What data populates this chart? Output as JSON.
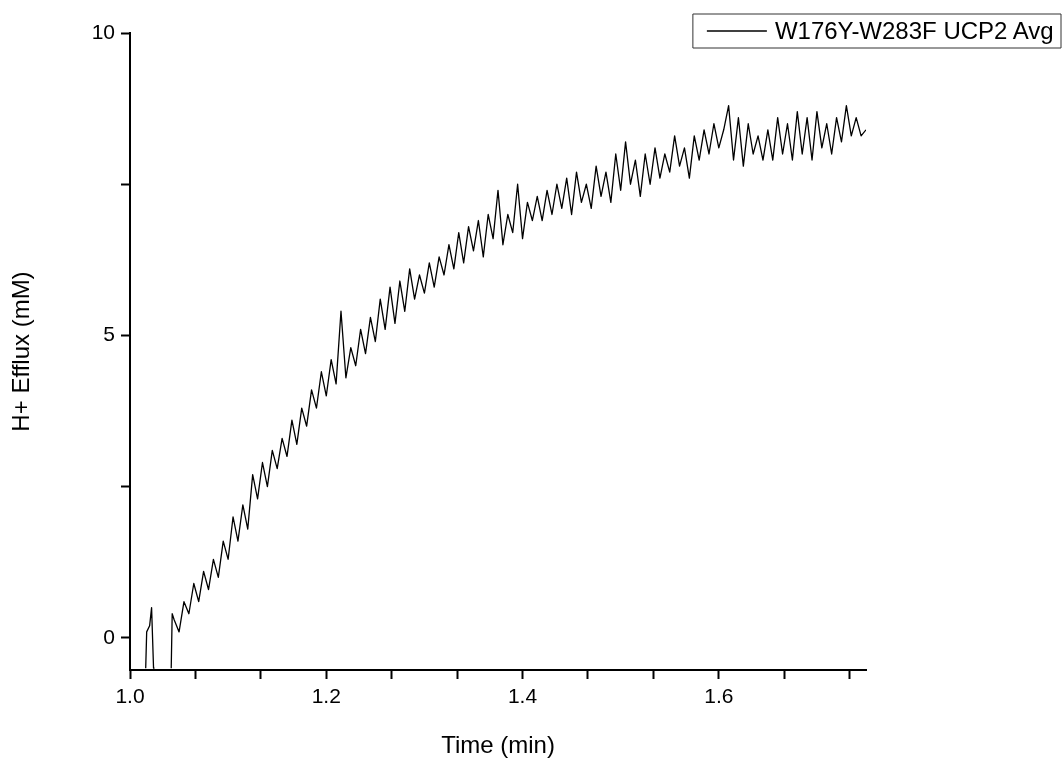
{
  "chart_data": {
    "type": "line",
    "xlabel": "Time (min)",
    "ylabel": "H+ Efflux (mM)",
    "legend": "top right",
    "grid": false,
    "marker": "none",
    "line_style": "solid",
    "xlim": [
      1.0,
      1.75
    ],
    "ylim": [
      -0.53,
      10
    ],
    "xticks": [
      {
        "value": 1.0,
        "label": "1.0"
      },
      {
        "value": 1.0667,
        "label": null
      },
      {
        "value": 1.1333,
        "label": null
      },
      {
        "value": 1.2,
        "label": "1.2"
      },
      {
        "value": 1.2667,
        "label": null
      },
      {
        "value": 1.3333,
        "label": null
      },
      {
        "value": 1.4,
        "label": "1.4"
      },
      {
        "value": 1.4667,
        "label": null
      },
      {
        "value": 1.5333,
        "label": null
      },
      {
        "value": 1.6,
        "label": "1.6"
      },
      {
        "value": 1.6667,
        "label": null
      },
      {
        "value": 1.7333,
        "label": null
      }
    ],
    "yticks": [
      0,
      {
        "value": 2.5,
        "label": null
      },
      5,
      {
        "value": 7.5,
        "label": null
      },
      10
    ],
    "series": [
      {
        "name": "W176Y-W283F UCP2 Avg",
        "color": "#000000",
        "x": [
          1.016,
          1.017,
          1.02,
          1.022,
          1.024,
          1.025,
          1.03,
          1.042,
          1.043,
          1.045,
          1.05,
          1.055,
          1.06,
          1.065,
          1.07,
          1.075,
          1.08,
          1.085,
          1.09,
          1.095,
          1.1,
          1.105,
          1.11,
          1.115,
          1.12,
          1.125,
          1.13,
          1.135,
          1.14,
          1.145,
          1.15,
          1.155,
          1.16,
          1.165,
          1.17,
          1.175,
          1.18,
          1.185,
          1.19,
          1.195,
          1.2,
          1.205,
          1.21,
          1.215,
          1.22,
          1.225,
          1.23,
          1.235,
          1.24,
          1.245,
          1.25,
          1.255,
          1.26,
          1.265,
          1.27,
          1.275,
          1.28,
          1.285,
          1.29,
          1.295,
          1.3,
          1.305,
          1.31,
          1.315,
          1.32,
          1.325,
          1.33,
          1.335,
          1.34,
          1.345,
          1.35,
          1.355,
          1.36,
          1.365,
          1.37,
          1.375,
          1.38,
          1.385,
          1.39,
          1.395,
          1.4,
          1.405,
          1.41,
          1.415,
          1.42,
          1.425,
          1.43,
          1.435,
          1.44,
          1.445,
          1.45,
          1.455,
          1.46,
          1.465,
          1.47,
          1.475,
          1.48,
          1.485,
          1.49,
          1.495,
          1.5,
          1.505,
          1.51,
          1.515,
          1.52,
          1.525,
          1.53,
          1.535,
          1.54,
          1.545,
          1.55,
          1.555,
          1.56,
          1.565,
          1.57,
          1.575,
          1.58,
          1.585,
          1.59,
          1.595,
          1.6,
          1.605,
          1.61,
          1.615,
          1.62,
          1.625,
          1.63,
          1.635,
          1.64,
          1.645,
          1.65,
          1.655,
          1.66,
          1.665,
          1.67,
          1.675,
          1.68,
          1.685,
          1.69,
          1.695,
          1.7,
          1.705,
          1.71,
          1.715,
          1.72,
          1.725,
          1.73,
          1.735,
          1.74,
          1.745,
          1.75
        ],
        "values": [
          -0.5,
          0.1,
          0.2,
          0.5,
          -0.5,
          -0.5,
          null,
          -0.5,
          0.4,
          0.3,
          0.1,
          0.6,
          0.4,
          0.9,
          0.6,
          1.1,
          0.8,
          1.3,
          1.0,
          1.6,
          1.3,
          2.0,
          1.6,
          2.2,
          1.8,
          2.7,
          2.3,
          2.9,
          2.5,
          3.1,
          2.8,
          3.3,
          3.0,
          3.6,
          3.2,
          3.8,
          3.5,
          4.1,
          3.8,
          4.4,
          4.0,
          4.6,
          4.2,
          5.4,
          4.3,
          4.8,
          4.5,
          5.1,
          4.7,
          5.3,
          4.9,
          5.6,
          5.1,
          5.8,
          5.2,
          5.9,
          5.4,
          6.1,
          5.6,
          6.0,
          5.7,
          6.2,
          5.8,
          6.3,
          6.0,
          6.5,
          6.1,
          6.7,
          6.2,
          6.8,
          6.4,
          6.9,
          6.3,
          7.0,
          6.6,
          7.4,
          6.5,
          7.0,
          6.7,
          7.5,
          6.6,
          7.2,
          6.9,
          7.3,
          6.9,
          7.4,
          7.0,
          7.5,
          7.1,
          7.6,
          7.0,
          7.7,
          7.2,
          7.5,
          7.1,
          7.8,
          7.3,
          7.7,
          7.2,
          8.0,
          7.4,
          8.2,
          7.5,
          7.9,
          7.3,
          8.0,
          7.5,
          8.1,
          7.6,
          8.0,
          7.7,
          8.3,
          7.8,
          8.1,
          7.6,
          8.3,
          7.9,
          8.4,
          8.0,
          8.5,
          8.1,
          8.4,
          8.8,
          7.9,
          8.6,
          7.8,
          8.5,
          8.0,
          8.3,
          7.9,
          8.4,
          7.9,
          8.6,
          8.0,
          8.5,
          7.9,
          8.7,
          8.0,
          8.6,
          7.9,
          8.7,
          8.1,
          8.5,
          8.0,
          8.6,
          8.2,
          8.8,
          8.3,
          8.6,
          8.3,
          8.4
        ]
      }
    ]
  }
}
